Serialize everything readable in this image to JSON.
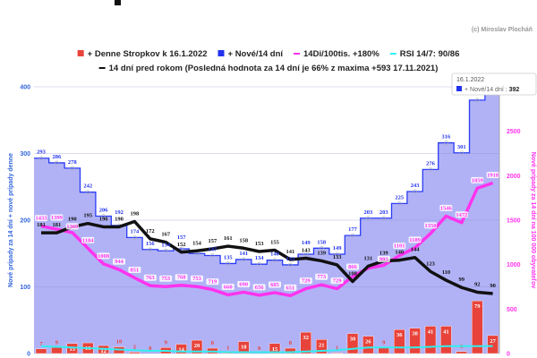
{
  "copyright": "(c) Miroslav Plocháň",
  "legend": {
    "row1": [
      {
        "label": "+ Denne Stropkov k 16.1.2022",
        "color": "#e8433a",
        "shape": "square"
      },
      {
        "label": "+ Nové/14 dní",
        "color": "#2233ee",
        "shape": "square"
      },
      {
        "label": "14Di/100tis. +180%",
        "color": "#ff33ee",
        "shape": "dash"
      },
      {
        "label": "RSI 14/7: 90/86",
        "color": "#33eeee",
        "shape": "dash"
      }
    ],
    "row2": [
      {
        "label": "14 dní pred rokom (Posledná hodnota za 14 dní je 66% z maxima +593 17.11.2021)",
        "color": "#111111",
        "shape": "dash"
      }
    ]
  },
  "tooltip": {
    "date": "16.1.2022",
    "series": "+ Nové/14 dní",
    "value": "392"
  },
  "chart_data": {
    "type": "combo",
    "n_points": 30,
    "left_axis": {
      "title": "Nové prípady za 14 dní + nové prípady denne",
      "range": [
        0,
        400
      ],
      "ticks": [
        "0",
        "100",
        "200",
        "300",
        "400"
      ],
      "color": "#3366dd"
    },
    "right_axis": {
      "title": "Nové prípady za 14 dní na 100 000 obyvateľov",
      "range": [
        0,
        3000
      ],
      "ticks": [
        "0",
        "500",
        "1000",
        "1500",
        "2000",
        "2500"
      ],
      "color": "#ff33ee"
    },
    "series": [
      {
        "name": "+ Nové/14 dní",
        "type": "step-area",
        "axis": "left",
        "color": "#2a3cf5",
        "fill": "#b1b2f6",
        "values": [
          293,
          286,
          278,
          242,
          206,
          192,
          174,
          156,
          154,
          157,
          150,
          147,
          135,
          141,
          134,
          140,
          133,
          149,
          158,
          149,
          177,
          203,
          203,
          225,
          243,
          276,
          316,
          301,
          380,
          392
        ],
        "labeled": [
          true,
          true,
          true,
          true,
          true,
          true,
          true,
          true,
          true,
          true,
          false,
          true,
          true,
          true,
          true,
          true,
          true,
          true,
          true,
          true,
          true,
          true,
          true,
          true,
          true,
          true,
          true,
          true,
          false,
          false
        ]
      },
      {
        "name": "+ Denne Stropkov k 16.1.2022",
        "type": "bar",
        "axis": "left",
        "color": "#e8433a",
        "values": [
          7,
          9,
          15,
          16,
          12,
          10,
          2,
          0,
          9,
          14,
          20,
          8,
          1,
          18,
          0,
          15,
          8,
          32,
          21,
          1,
          30,
          26,
          9,
          36,
          38,
          41,
          41,
          3,
          79,
          27
        ]
      },
      {
        "name": "14Di/100tis. +180%",
        "type": "line",
        "axis": "right",
        "color": "#ff33ee",
        "values": [
          1433,
          1399,
          1360,
          1184,
          1008,
          944,
          851,
          763,
          753,
          768,
          753,
          719,
          660,
          690,
          656,
          685,
          651,
          729,
          773,
          729,
          866,
          960,
          993,
          1101,
          1189,
          1350,
          1546,
          1472,
          1859,
          1918
        ],
        "labeled": [
          true,
          true,
          true,
          true,
          true,
          true,
          true,
          true,
          true,
          true,
          true,
          true,
          true,
          true,
          true,
          true,
          true,
          true,
          true,
          true,
          true,
          false,
          true,
          true,
          true,
          true,
          true,
          true,
          true,
          true
        ]
      },
      {
        "name": "14 dní pred rokom",
        "type": "line",
        "axis": "left",
        "color": "#111111",
        "values": [
          181,
          181,
          190,
          195,
          190,
          190,
          198,
          172,
          167,
          152,
          154,
          157,
          161,
          158,
          153,
          155,
          141,
          143,
          139,
          133,
          108,
          131,
          139,
          140,
          144,
          123,
          110,
          99,
          92,
          90
        ]
      },
      {
        "name": "RSI 14/7: 90/86",
        "type": "line",
        "axis": "left",
        "color": "#33eeee",
        "values": [
          11,
          10,
          9,
          8,
          7,
          6,
          5,
          4,
          4,
          3,
          3,
          3,
          2,
          2,
          2,
          2,
          2,
          3,
          4,
          5,
          7,
          9,
          9,
          9,
          9,
          10,
          11,
          11,
          11,
          11
        ]
      }
    ]
  }
}
